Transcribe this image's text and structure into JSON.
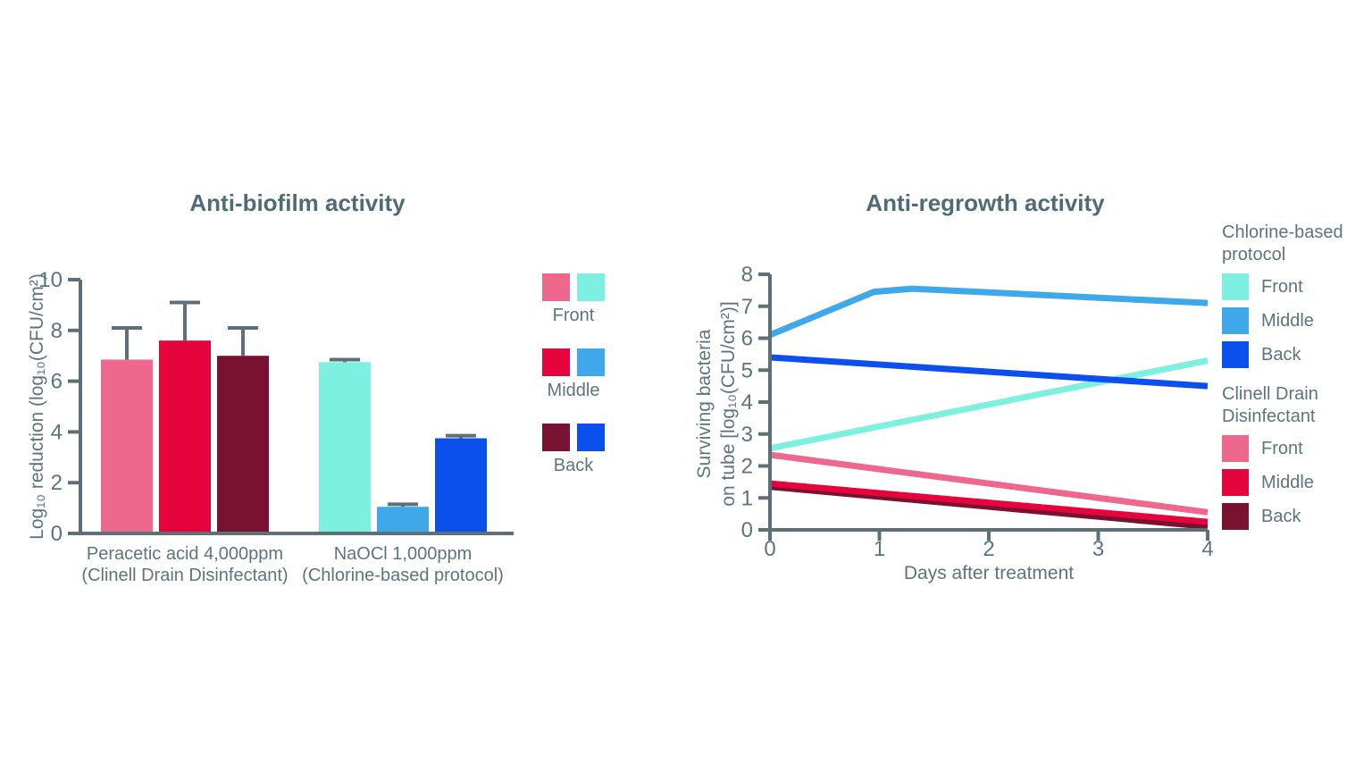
{
  "figure": {
    "background": "#ffffff"
  },
  "colors": {
    "axis": "#5b7078",
    "label_text": "#5e747d",
    "title_text": "#4e6b76",
    "clinell_front": "#ed688c",
    "clinell_middle": "#e5053c",
    "clinell_back": "#791231",
    "chlorine_front": "#7df0e1",
    "chlorine_middle": "#3ea8e9",
    "chlorine_back": "#0b50ec"
  },
  "chart_data": [
    {
      "type": "bar",
      "title": "Anti-biofilm activity",
      "ylabel": "Log₁₀ reduction (log₁₀(CFU/cm²)",
      "xlabel": "",
      "ylim": [
        0,
        10
      ],
      "yticks": [
        0,
        2,
        4,
        6,
        8,
        10
      ],
      "grid": false,
      "groups": [
        {
          "label_line1": "Peracetic acid 4,000ppm",
          "label_line2": "(Clinell Drain Disinfectant)",
          "bars": [
            {
              "series": "Front",
              "color_key": "clinell_front",
              "value": 6.85,
              "error_top": 8.1
            },
            {
              "series": "Middle",
              "color_key": "clinell_middle",
              "value": 7.6,
              "error_top": 9.1
            },
            {
              "series": "Back",
              "color_key": "clinell_back",
              "value": 7.0,
              "error_top": 8.1
            }
          ]
        },
        {
          "label_line1": "NaOCl 1,000ppm",
          "label_line2": "(Chlorine-based protocol)",
          "bars": [
            {
              "series": "Front",
              "color_key": "chlorine_front",
              "value": 6.75,
              "error_top": 6.85
            },
            {
              "series": "Middle",
              "color_key": "chlorine_middle",
              "value": 1.05,
              "error_top": 1.15
            },
            {
              "series": "Back",
              "color_key": "chlorine_back",
              "value": 3.75,
              "error_top": 3.85
            }
          ]
        }
      ],
      "legend": {
        "rows": [
          {
            "label": "Front",
            "swatch_keys": [
              "clinell_front",
              "chlorine_front"
            ]
          },
          {
            "label": "Middle",
            "swatch_keys": [
              "clinell_middle",
              "chlorine_middle"
            ]
          },
          {
            "label": "Back",
            "swatch_keys": [
              "clinell_back",
              "chlorine_back"
            ]
          }
        ]
      }
    },
    {
      "type": "line",
      "title": "Anti-regrowth activity",
      "xlabel": "Days after treatment",
      "ylabel_line1": "Surviving bacteria",
      "ylabel_line2": "on tube [log₁₀(CFU/cm²)]",
      "xlim": [
        0,
        4
      ],
      "ylim": [
        0,
        8
      ],
      "xticks": [
        0,
        1,
        2,
        3,
        4
      ],
      "yticks": [
        0,
        1,
        2,
        3,
        4,
        5,
        6,
        7,
        8
      ],
      "grid": false,
      "series": [
        {
          "name": "Chlorine-based protocol - Middle",
          "color_key": "chlorine_middle",
          "x": [
            0,
            0.95,
            1.3,
            4
          ],
          "y": [
            6.1,
            7.45,
            7.55,
            7.1
          ]
        },
        {
          "name": "Chlorine-based protocol - Front",
          "color_key": "chlorine_front",
          "x": [
            0,
            4
          ],
          "y": [
            2.55,
            5.3
          ]
        },
        {
          "name": "Chlorine-based protocol - Back",
          "color_key": "chlorine_back",
          "x": [
            0,
            4
          ],
          "y": [
            5.4,
            4.5
          ]
        },
        {
          "name": "Clinell Drain Disinfectant - Front",
          "color_key": "clinell_front",
          "x": [
            0,
            4
          ],
          "y": [
            2.35,
            0.55
          ]
        },
        {
          "name": "Clinell Drain Disinfectant - Back",
          "color_key": "clinell_back",
          "x": [
            0,
            4
          ],
          "y": [
            1.35,
            0.1
          ]
        },
        {
          "name": "Clinell Drain Disinfectant - Middle",
          "color_key": "clinell_middle",
          "x": [
            0,
            4
          ],
          "y": [
            1.45,
            0.25
          ]
        }
      ],
      "legend": {
        "position": "right",
        "groups": [
          {
            "header_line1": "Chlorine-based",
            "header_line2": "protocol",
            "items": [
              {
                "label": "Front",
                "color_key": "chlorine_front"
              },
              {
                "label": "Middle",
                "color_key": "chlorine_middle"
              },
              {
                "label": "Back",
                "color_key": "chlorine_back"
              }
            ]
          },
          {
            "header_line1": "Clinell Drain",
            "header_line2": "Disinfectant",
            "items": [
              {
                "label": "Front",
                "color_key": "clinell_front"
              },
              {
                "label": "Middle",
                "color_key": "clinell_middle"
              },
              {
                "label": "Back",
                "color_key": "clinell_back"
              }
            ]
          }
        ]
      }
    }
  ]
}
